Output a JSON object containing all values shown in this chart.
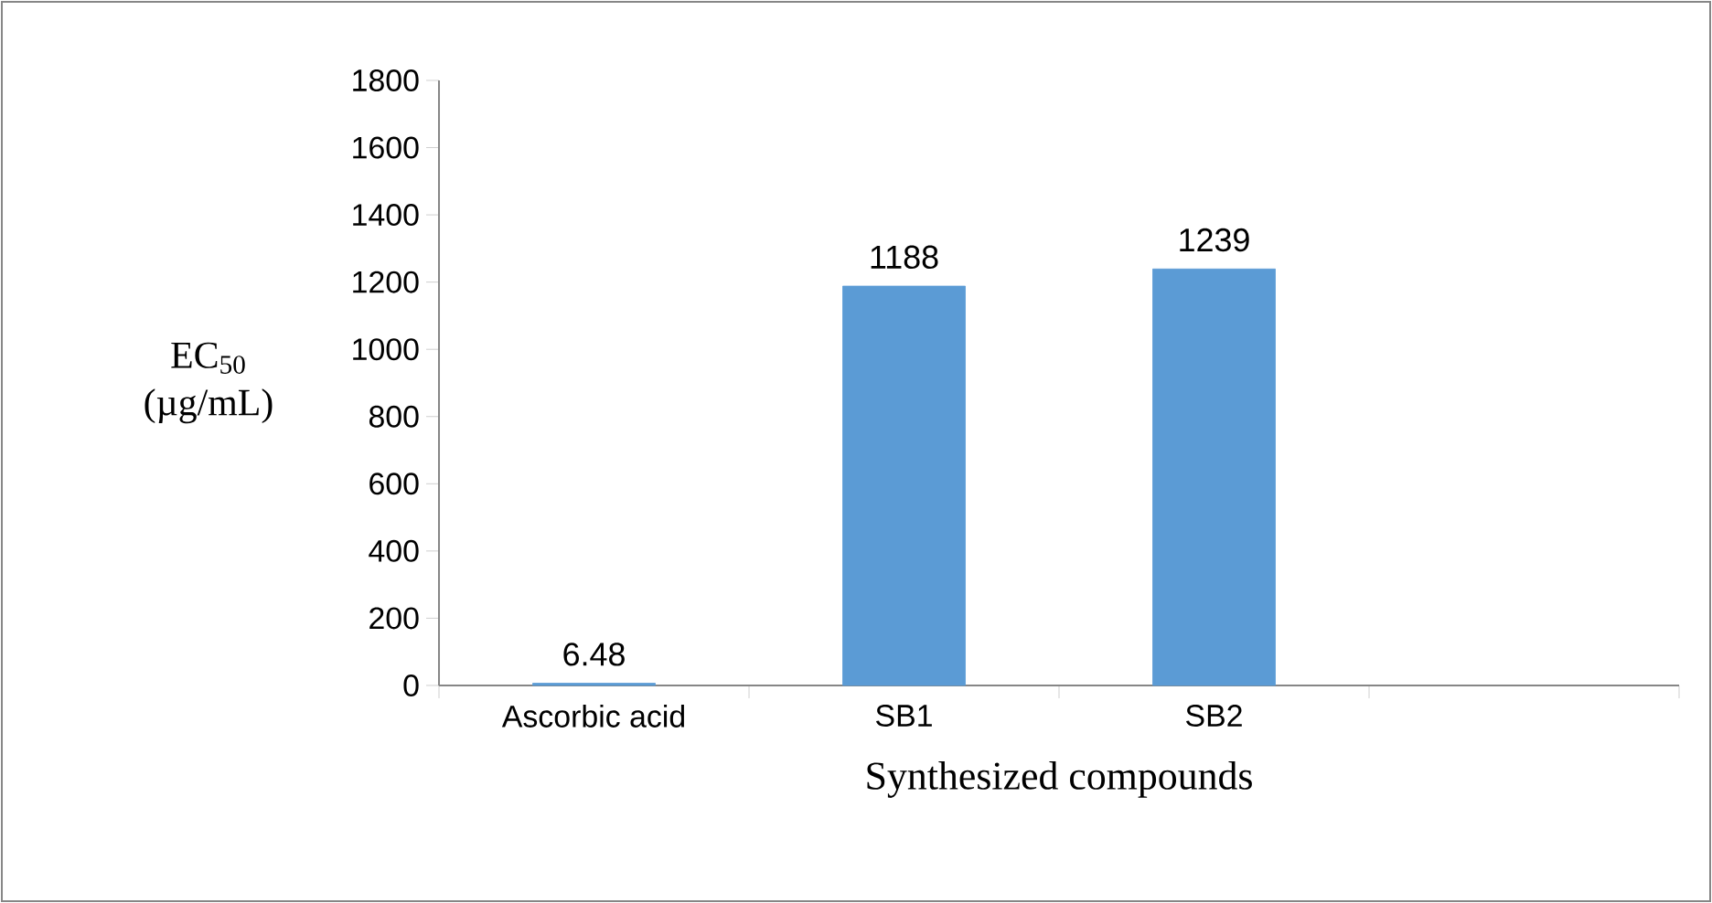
{
  "chart_data": {
    "type": "bar",
    "categories": [
      "Ascorbic acid",
      "SB1",
      "SB2",
      null
    ],
    "values": [
      6.48,
      1188,
      1239,
      null
    ],
    "color": "#5b9bd5",
    "data_labels": true,
    "ylabel": "EC$_{50}$ (µg/mL)",
    "xlabel": "Synthesized compounds",
    "ylim": [
      0,
      1800
    ],
    "yticks": [
      0,
      200,
      400,
      600,
      800,
      1000,
      1200,
      1400,
      1600,
      1800
    ],
    "grid": false
  }
}
